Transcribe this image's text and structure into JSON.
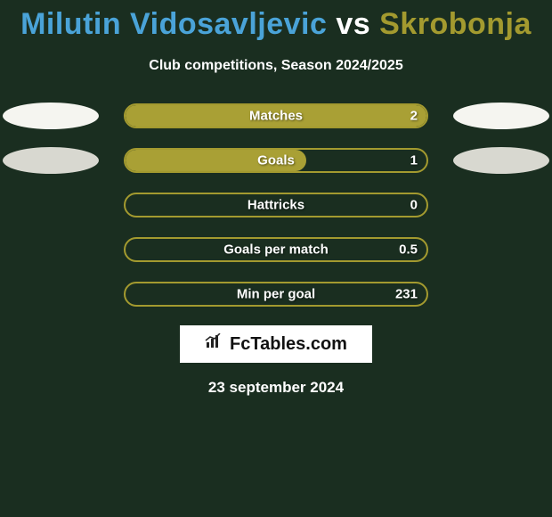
{
  "title": {
    "player1": "Milutin Vidosavljevic",
    "vs": "vs",
    "player2": "Skrobonja",
    "color_player1": "#4aa3d8",
    "color_vs": "#ffffff",
    "color_player2": "#a39a2f"
  },
  "subtitle": "Club competitions, Season 2024/2025",
  "accent_color": "#a39a2f",
  "fill_color": "#a9a035",
  "rows": [
    {
      "label": "Matches",
      "value": "2",
      "fill_pct": 100,
      "left_ellipse": "light",
      "right_ellipse": "light"
    },
    {
      "label": "Goals",
      "value": "1",
      "fill_pct": 60,
      "left_ellipse": "dark",
      "right_ellipse": "dark"
    },
    {
      "label": "Hattricks",
      "value": "0",
      "fill_pct": 0,
      "left_ellipse": null,
      "right_ellipse": null
    },
    {
      "label": "Goals per match",
      "value": "0.5",
      "fill_pct": 0,
      "left_ellipse": null,
      "right_ellipse": null
    },
    {
      "label": "Min per goal",
      "value": "231",
      "fill_pct": 0,
      "left_ellipse": null,
      "right_ellipse": null
    }
  ],
  "logo": {
    "text": "FcTables.com",
    "icon": "bar-chart-icon"
  },
  "date": "23 september 2024",
  "background_color": "#1a2e20"
}
